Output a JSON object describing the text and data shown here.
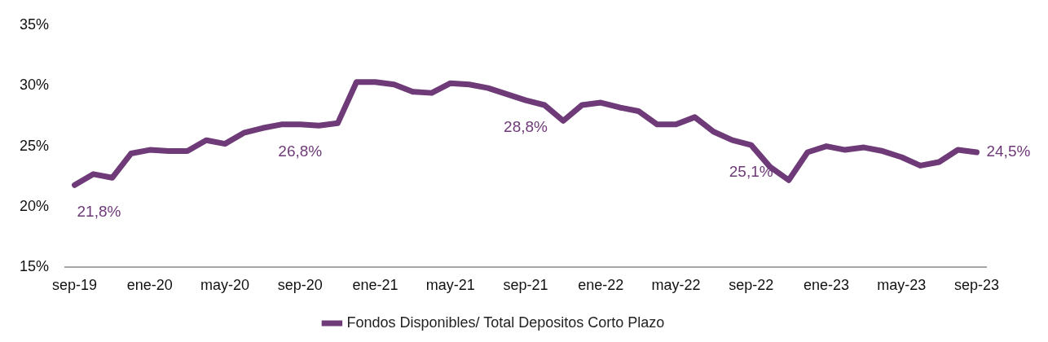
{
  "chart_data": {
    "type": "line",
    "categories": [
      "sep-19",
      null,
      null,
      null,
      "ene-20",
      null,
      null,
      null,
      "may-20",
      null,
      null,
      null,
      "sep-20",
      null,
      null,
      null,
      "ene-21",
      null,
      null,
      null,
      "may-21",
      null,
      null,
      null,
      "sep-21",
      null,
      null,
      null,
      "ene-22",
      null,
      null,
      null,
      "may-22",
      null,
      null,
      null,
      "sep-22",
      null,
      null,
      null,
      "ene-23",
      null,
      null,
      null,
      "may-23",
      null,
      null,
      null,
      "sep-23"
    ],
    "series": [
      {
        "name": "Fondos Disponibles/ Total Depositos Corto Plazo",
        "color": "#6e3b78",
        "values": [
          21.8,
          22.7,
          22.4,
          24.4,
          24.7,
          24.6,
          24.6,
          25.5,
          25.2,
          26.1,
          26.5,
          26.8,
          26.8,
          26.7,
          26.9,
          30.3,
          30.3,
          30.1,
          29.5,
          29.4,
          30.2,
          30.1,
          29.8,
          29.3,
          28.8,
          28.4,
          27.1,
          28.4,
          28.6,
          28.2,
          27.9,
          26.8,
          26.8,
          27.4,
          26.2,
          25.5,
          25.1,
          23.3,
          22.2,
          24.5,
          25.0,
          24.7,
          24.9,
          24.6,
          24.1,
          23.4,
          23.7,
          24.7,
          24.5
        ],
        "value_labels": [
          "21,8%",
          null,
          null,
          null,
          null,
          null,
          null,
          null,
          null,
          null,
          null,
          null,
          "26,8%",
          null,
          null,
          null,
          null,
          null,
          null,
          null,
          null,
          null,
          null,
          null,
          "28,8%",
          null,
          null,
          null,
          null,
          null,
          null,
          null,
          null,
          null,
          null,
          null,
          "25,1%",
          null,
          null,
          null,
          null,
          null,
          null,
          null,
          null,
          null,
          null,
          null,
          "24,5%"
        ]
      }
    ],
    "ylim": [
      15,
      35
    ],
    "yticks": [
      {
        "value": 15,
        "label": "15%"
      },
      {
        "value": 20,
        "label": "20%"
      },
      {
        "value": 25,
        "label": "25%"
      },
      {
        "value": 30,
        "label": "30%"
      },
      {
        "value": 35,
        "label": "35%"
      }
    ],
    "grid": false,
    "legend": "bottom",
    "marker": "none",
    "line_style": "solid"
  }
}
